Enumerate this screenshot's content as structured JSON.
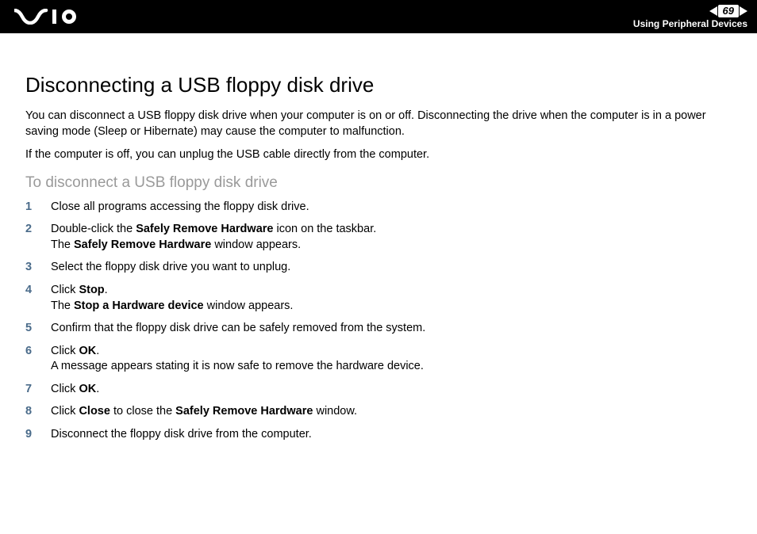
{
  "header": {
    "page_number": "69",
    "section_title": "Using Peripheral Devices"
  },
  "colors": {
    "header_bg": "#000000",
    "header_text": "#ffffff",
    "heading_text": "#000000",
    "subheading_text": "#9a9a9a",
    "body_text": "#000000",
    "step_number": "#4a6b8a",
    "page_bg": "#ffffff"
  },
  "typography": {
    "h1_size": 26,
    "h2_size": 19,
    "body_size": 14.5,
    "section_title_size": 12,
    "page_number_size": 13,
    "font_family": "Arial"
  },
  "content": {
    "title": "Disconnecting a USB floppy disk drive",
    "intro_1": "You can disconnect a USB floppy disk drive when your computer is on or off. Disconnecting the drive when the computer is in a power saving mode (Sleep or Hibernate) may cause the computer to malfunction.",
    "intro_2": "If the computer is off, you can unplug the USB cable directly from the computer.",
    "subheading": "To disconnect a USB floppy disk drive",
    "steps": [
      {
        "n": "1",
        "pre": "Close all programs accessing the floppy disk drive."
      },
      {
        "n": "2",
        "pre": "Double-click the ",
        "b1": "Safely Remove Hardware",
        "mid": " icon on the taskbar.",
        "br": true,
        "line2_pre": "The ",
        "line2_b": "Safely Remove Hardware",
        "line2_post": " window appears."
      },
      {
        "n": "3",
        "pre": "Select the floppy disk drive you want to unplug."
      },
      {
        "n": "4",
        "pre": "Click ",
        "b1": "Stop",
        "mid": ".",
        "br": true,
        "line2_pre": "The ",
        "line2_b": "Stop a Hardware device",
        "line2_post": " window appears."
      },
      {
        "n": "5",
        "pre": "Confirm that the floppy disk drive can be safely removed from the system."
      },
      {
        "n": "6",
        "pre": "Click ",
        "b1": "OK",
        "mid": ".",
        "br": true,
        "line2_pre": "A message appears stating it is now safe to remove the hardware device."
      },
      {
        "n": "7",
        "pre": "Click ",
        "b1": "OK",
        "mid": "."
      },
      {
        "n": "8",
        "pre": "Click ",
        "b1": "Close",
        "mid": " to close the ",
        "b2": "Safely Remove Hardware",
        "post": " window."
      },
      {
        "n": "9",
        "pre": "Disconnect the floppy disk drive from the computer."
      }
    ]
  }
}
